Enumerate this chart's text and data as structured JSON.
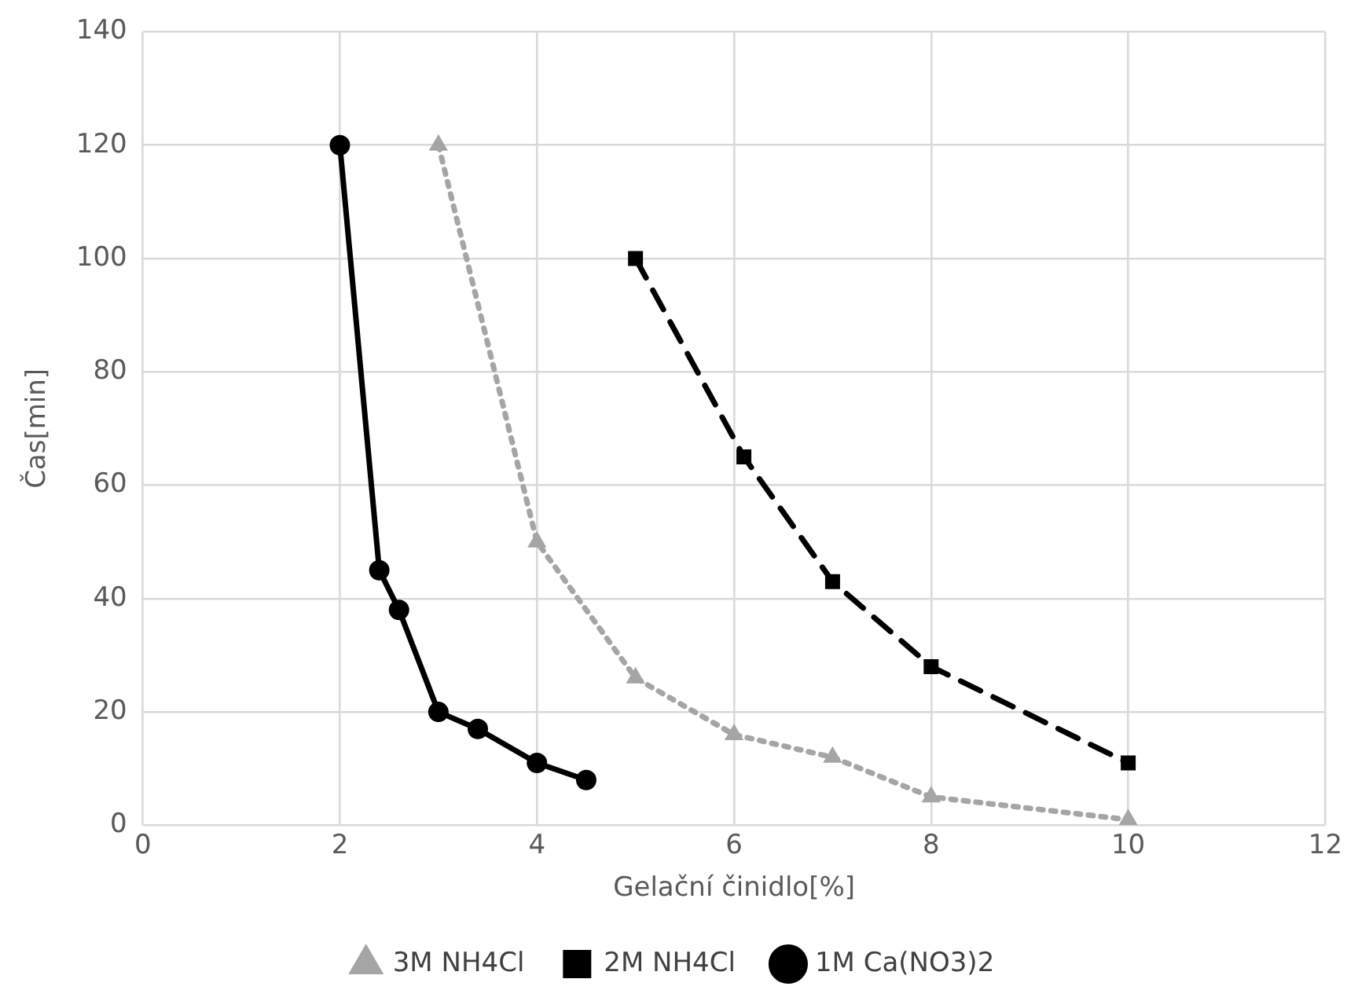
{
  "chart_data": {
    "type": "line",
    "xlabel": "Gelační činidlo[%]",
    "ylabel": "Čas[min]",
    "xlim": [
      0,
      12
    ],
    "xticks": [
      0,
      2,
      4,
      6,
      8,
      10,
      12
    ],
    "ylim": [
      0,
      140
    ],
    "yticks": [
      0,
      20,
      40,
      60,
      80,
      100,
      120,
      140
    ],
    "grid": true,
    "legend": "bottom",
    "series": [
      {
        "name": "3M NH4Cl",
        "color": "#a5a5a5",
        "marker": "triangle",
        "line_style": "dotted",
        "x": [
          3,
          4,
          5,
          6,
          7,
          8,
          10
        ],
        "values": [
          120,
          50,
          26,
          16,
          12,
          5,
          1
        ]
      },
      {
        "name": "2M NH4Cl",
        "color": "#000000",
        "marker": "square",
        "line_style": "dashed",
        "x": [
          5,
          6.1,
          7,
          8,
          10
        ],
        "values": [
          100,
          65,
          43,
          28,
          11
        ]
      },
      {
        "name": "1M Ca(NO3)2",
        "color": "#000000",
        "marker": "circle",
        "line_style": "solid",
        "x": [
          2,
          2.4,
          2.6,
          3,
          3.4,
          4,
          4.5
        ],
        "values": [
          120,
          45,
          38,
          20,
          17,
          11,
          8
        ]
      }
    ]
  }
}
